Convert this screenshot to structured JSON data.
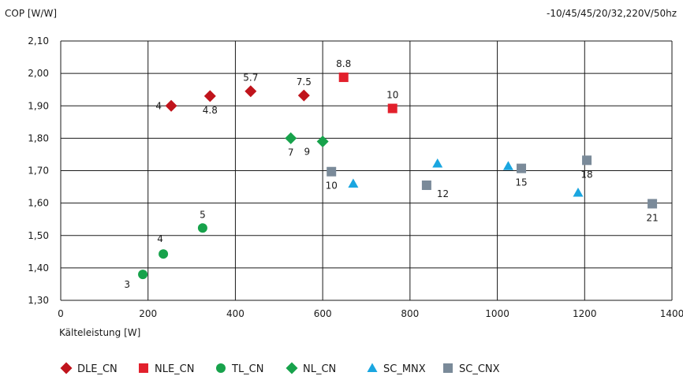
{
  "chart_data": {
    "type": "scatter",
    "ylabel": "COP [W/W]",
    "xlabel": "Kälteleistung [W]",
    "condition_note": "-10/45/45/20/32,220V/50hz",
    "xlim": [
      0,
      1400
    ],
    "ylim": [
      1.3,
      2.1
    ],
    "x_ticks": [
      0,
      200,
      400,
      600,
      800,
      1000,
      1200,
      1400
    ],
    "y_ticks": [
      1.3,
      1.4,
      1.5,
      1.6,
      1.7,
      1.8,
      1.9,
      2.0,
      2.1
    ],
    "y_tick_labels": [
      "1,30",
      "1,40",
      "1,50",
      "1,60",
      "1,70",
      "1,80",
      "1,90",
      "2,00",
      "2,10"
    ],
    "grid": true,
    "legend_position": "bottom",
    "series": [
      {
        "name": "DLE_CN",
        "marker": "diamond",
        "color": "#c0141c",
        "points": [
          {
            "x": 253,
            "y": 1.9,
            "label": "4",
            "label_pos": "left"
          },
          {
            "x": 342,
            "y": 1.93,
            "label": "4.8",
            "label_pos": "below"
          },
          {
            "x": 435,
            "y": 1.945,
            "label": "5.7",
            "label_pos": "above"
          },
          {
            "x": 557,
            "y": 1.932,
            "label": "7.5",
            "label_pos": "above"
          }
        ]
      },
      {
        "name": "NLE_CN",
        "marker": "square",
        "color": "#e2202c",
        "points": [
          {
            "x": 648,
            "y": 1.988,
            "label": "8.8",
            "label_pos": "above"
          },
          {
            "x": 760,
            "y": 1.892,
            "label": "10",
            "label_pos": "above"
          }
        ]
      },
      {
        "name": "TL_CN",
        "marker": "circle",
        "color": "#17a24b",
        "points": [
          {
            "x": 188,
            "y": 1.38,
            "label": "3",
            "label_pos": "below-left"
          },
          {
            "x": 235,
            "y": 1.443,
            "label": "4",
            "label_pos": "above-left"
          },
          {
            "x": 325,
            "y": 1.523,
            "label": "5",
            "label_pos": "above"
          }
        ]
      },
      {
        "name": "NL_CN",
        "marker": "diamond",
        "color": "#17a24b",
        "points": [
          {
            "x": 527,
            "y": 1.8,
            "label": "7",
            "label_pos": "below"
          },
          {
            "x": 600,
            "y": 1.79,
            "label": "9",
            "label_pos": "below-left"
          }
        ]
      },
      {
        "name": "SC_MNX",
        "marker": "triangle",
        "color": "#1aa6e0",
        "points": [
          {
            "x": 670,
            "y": 1.66
          },
          {
            "x": 863,
            "y": 1.722
          },
          {
            "x": 1025,
            "y": 1.714
          },
          {
            "x": 1185,
            "y": 1.632
          }
        ]
      },
      {
        "name": "SC_CNX",
        "marker": "square",
        "color": "#7a8a99",
        "points": [
          {
            "x": 620,
            "y": 1.697,
            "label": "10",
            "label_pos": "below"
          },
          {
            "x": 838,
            "y": 1.655,
            "label": "12",
            "label_pos": "right"
          },
          {
            "x": 1055,
            "y": 1.707,
            "label": "15",
            "label_pos": "below"
          },
          {
            "x": 1205,
            "y": 1.732,
            "label": "18",
            "label_pos": "below"
          },
          {
            "x": 1355,
            "y": 1.598,
            "label": "21",
            "label_pos": "below"
          }
        ]
      }
    ]
  }
}
